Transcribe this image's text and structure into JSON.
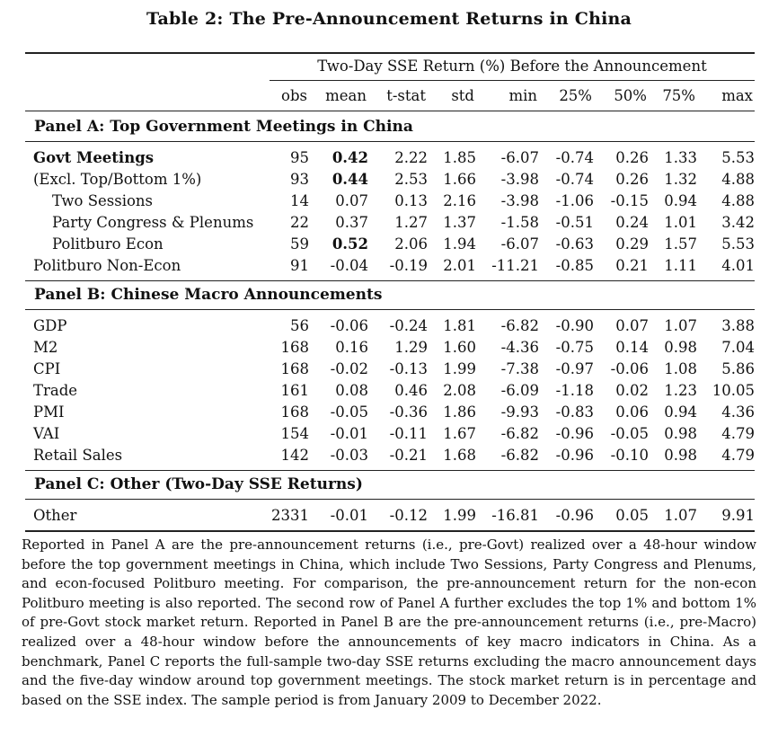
{
  "title": "Table 2: The Pre-Announcement Returns in China",
  "super_header": "Two-Day SSE Return (%) Before the Announcement",
  "columns": [
    "obs",
    "mean",
    "t-stat",
    "std",
    "min",
    "25%",
    "50%",
    "75%",
    "max"
  ],
  "panels": [
    {
      "title": "Panel A: Top Government Meetings in China",
      "rows": [
        {
          "label": "Govt Meetings",
          "values": [
            "95",
            "0.42",
            "2.22",
            "1.85",
            "-6.07",
            "-0.74",
            "0.26",
            "1.33",
            "5.53"
          ]
        },
        {
          "label": "(Excl. Top/Bottom 1%)",
          "values": [
            "93",
            "0.44",
            "2.53",
            "1.66",
            "-3.98",
            "-0.74",
            "0.26",
            "1.32",
            "4.88"
          ]
        },
        {
          "label": "Two Sessions",
          "values": [
            "14",
            "0.07",
            "0.13",
            "2.16",
            "-3.98",
            "-1.06",
            "-0.15",
            "0.94",
            "4.88"
          ]
        },
        {
          "label": "Party Congress & Plenums",
          "values": [
            "22",
            "0.37",
            "1.27",
            "1.37",
            "-1.58",
            "-0.51",
            "0.24",
            "1.01",
            "3.42"
          ]
        },
        {
          "label": "Politburo Econ",
          "values": [
            "59",
            "0.52",
            "2.06",
            "1.94",
            "-6.07",
            "-0.63",
            "0.29",
            "1.57",
            "5.53"
          ]
        },
        {
          "label": "Politburo Non-Econ",
          "values": [
            "91",
            "-0.04",
            "-0.19",
            "2.01",
            "-11.21",
            "-0.85",
            "0.21",
            "1.11",
            "4.01"
          ]
        }
      ]
    },
    {
      "title": "Panel B: Chinese Macro Announcements",
      "rows": [
        {
          "label": "GDP",
          "values": [
            "56",
            "-0.06",
            "-0.24",
            "1.81",
            "-6.82",
            "-0.90",
            "0.07",
            "1.07",
            "3.88"
          ]
        },
        {
          "label": "M2",
          "values": [
            "168",
            "0.16",
            "1.29",
            "1.60",
            "-4.36",
            "-0.75",
            "0.14",
            "0.98",
            "7.04"
          ]
        },
        {
          "label": "CPI",
          "values": [
            "168",
            "-0.02",
            "-0.13",
            "1.99",
            "-7.38",
            "-0.97",
            "-0.06",
            "1.08",
            "5.86"
          ]
        },
        {
          "label": "Trade",
          "values": [
            "161",
            "0.08",
            "0.46",
            "2.08",
            "-6.09",
            "-1.18",
            "0.02",
            "1.23",
            "10.05"
          ]
        },
        {
          "label": "PMI",
          "values": [
            "168",
            "-0.05",
            "-0.36",
            "1.86",
            "-9.93",
            "-0.83",
            "0.06",
            "0.94",
            "4.36"
          ]
        },
        {
          "label": "VAI",
          "values": [
            "154",
            "-0.01",
            "-0.11",
            "1.67",
            "-6.82",
            "-0.96",
            "-0.05",
            "0.98",
            "4.79"
          ]
        },
        {
          "label": "Retail Sales",
          "values": [
            "142",
            "-0.03",
            "-0.21",
            "1.68",
            "-6.82",
            "-0.96",
            "-0.10",
            "0.98",
            "4.79"
          ]
        }
      ]
    },
    {
      "title": "Panel C: Other (Two-Day SSE Returns)",
      "rows": [
        {
          "label": "Other",
          "values": [
            "2331",
            "-0.01",
            "-0.12",
            "1.99",
            "-16.81",
            "-0.96",
            "0.05",
            "1.07",
            "9.91"
          ]
        }
      ]
    }
  ],
  "note": "Reported in Panel A are the pre-announcement returns (i.e., pre-Govt) realized over a 48-hour window before the top government meetings in China, which include Two Sessions, Party Congress and Plenums, and econ-focused Politburo meeting. For comparison, the pre-announcement return for the non-econ Politburo meeting is also reported. The second row of Panel A further excludes the top 1% and bottom 1% of pre-Govt stock market return. Reported in Panel B are the pre-announcement returns (i.e., pre-Macro) realized over a 48-hour window before the announcements of key macro indicators in China. As a benchmark, Panel C reports the full-sample two-day SSE returns excluding the macro announcement days and the five-day window around top government meetings. The stock market return is in percentage and based on the SSE index. The sample period is from January 2009 to December 2022."
}
